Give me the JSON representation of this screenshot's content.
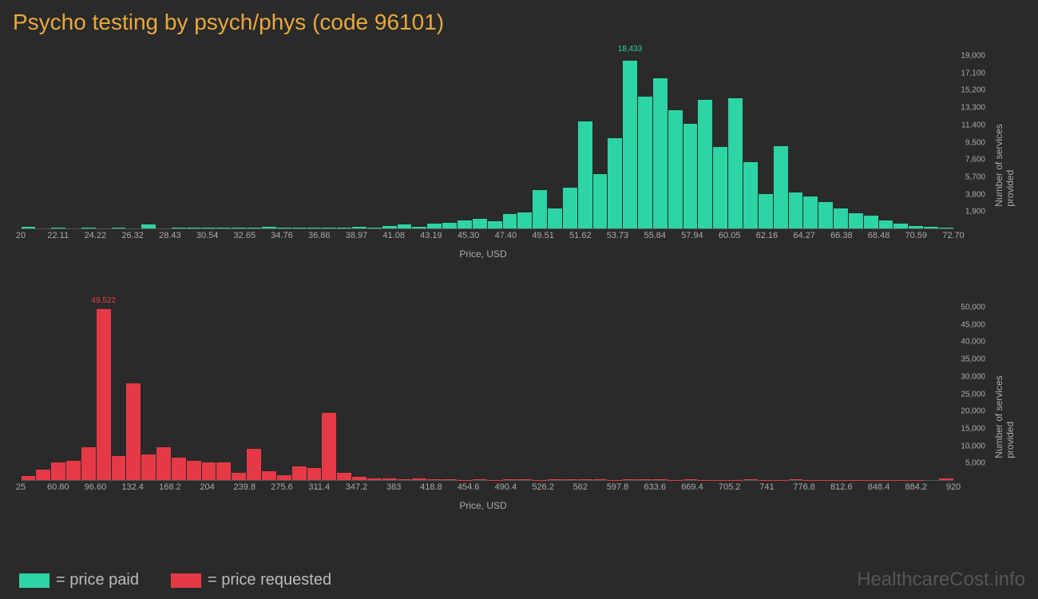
{
  "title": "Psycho testing by psych/phys (code 96101)",
  "background_color": "#2a2a2a",
  "title_color": "#e8a93d",
  "title_fontsize": 28,
  "axis_text_color": "#aaaaaa",
  "watermark": "HealthcareCost.info",
  "watermark_color": "#555555",
  "legend": {
    "items": [
      {
        "color": "#2dd4a4",
        "label": "= price paid"
      },
      {
        "color": "#e63946",
        "label": "= price requested"
      }
    ],
    "text_color": "#bbbbbb",
    "fontsize": 20
  },
  "chart_top": {
    "type": "histogram",
    "color": "#2dd4a4",
    "peak_value": 18433,
    "peak_label": "18,433",
    "peak_index": 40,
    "xlabel": "Price, USD",
    "ylabel": "Number of services provided",
    "x_ticks": [
      "20",
      "22.11",
      "24.22",
      "26.32",
      "28.43",
      "30.54",
      "32.65",
      "34.76",
      "36.86",
      "38.97",
      "41.08",
      "43.19",
      "45.30",
      "47.40",
      "49.51",
      "51.62",
      "53.73",
      "55.84",
      "57.94",
      "60.05",
      "62.16",
      "64.27",
      "66.38",
      "68.48",
      "70.59",
      "72.70"
    ],
    "y_ticks": [
      "1,900",
      "3,800",
      "5,700",
      "7,600",
      "9,500",
      "11,400",
      "13,300",
      "15,200",
      "17,100",
      "19,000"
    ],
    "y_max": 19000,
    "values": [
      200,
      0,
      100,
      0,
      100,
      0,
      100,
      0,
      400,
      0,
      100,
      100,
      100,
      100,
      100,
      100,
      200,
      100,
      100,
      100,
      100,
      100,
      200,
      100,
      300,
      400,
      200,
      500,
      600,
      900,
      1100,
      800,
      1600,
      1800,
      4200,
      2200,
      4500,
      11800,
      6000,
      9900,
      18433,
      14500,
      16500,
      13000,
      11500,
      14200,
      9000,
      14300,
      7300,
      3800,
      9100,
      4000,
      3500,
      2900,
      2200,
      1700,
      1400,
      900,
      500,
      300,
      200,
      100
    ]
  },
  "chart_bottom": {
    "type": "histogram",
    "color": "#e63946",
    "peak_value": 49522,
    "peak_label": "49,522",
    "peak_index": 5,
    "xlabel": "Price, USD",
    "ylabel": "Number of services provided",
    "x_ticks": [
      "25",
      "60.80",
      "96.60",
      "132.4",
      "168.2",
      "204",
      "239.8",
      "275.6",
      "311.4",
      "347.2",
      "383",
      "418.8",
      "454.6",
      "490.4",
      "526.2",
      "562",
      "597.8",
      "633.6",
      "669.4",
      "705.2",
      "741",
      "776.8",
      "812.6",
      "848.4",
      "884.2",
      "920"
    ],
    "y_ticks": [
      "5,000",
      "10,000",
      "15,000",
      "20,000",
      "25,000",
      "30,000",
      "35,000",
      "40,000",
      "45,000",
      "50,000"
    ],
    "y_max": 50000,
    "values": [
      1200,
      3000,
      5000,
      5500,
      9500,
      49522,
      7000,
      28000,
      7500,
      9500,
      6500,
      5500,
      5000,
      5000,
      2000,
      9000,
      2500,
      1500,
      4000,
      3500,
      19500,
      2000,
      1000,
      500,
      500,
      300,
      500,
      200,
      200,
      100,
      200,
      100,
      200,
      200,
      100,
      200,
      200,
      200,
      200,
      100,
      200,
      200,
      200,
      100,
      200,
      100,
      100,
      100,
      200,
      100,
      100,
      200,
      100,
      100,
      100,
      100,
      100,
      100,
      100,
      100,
      0,
      500
    ]
  }
}
